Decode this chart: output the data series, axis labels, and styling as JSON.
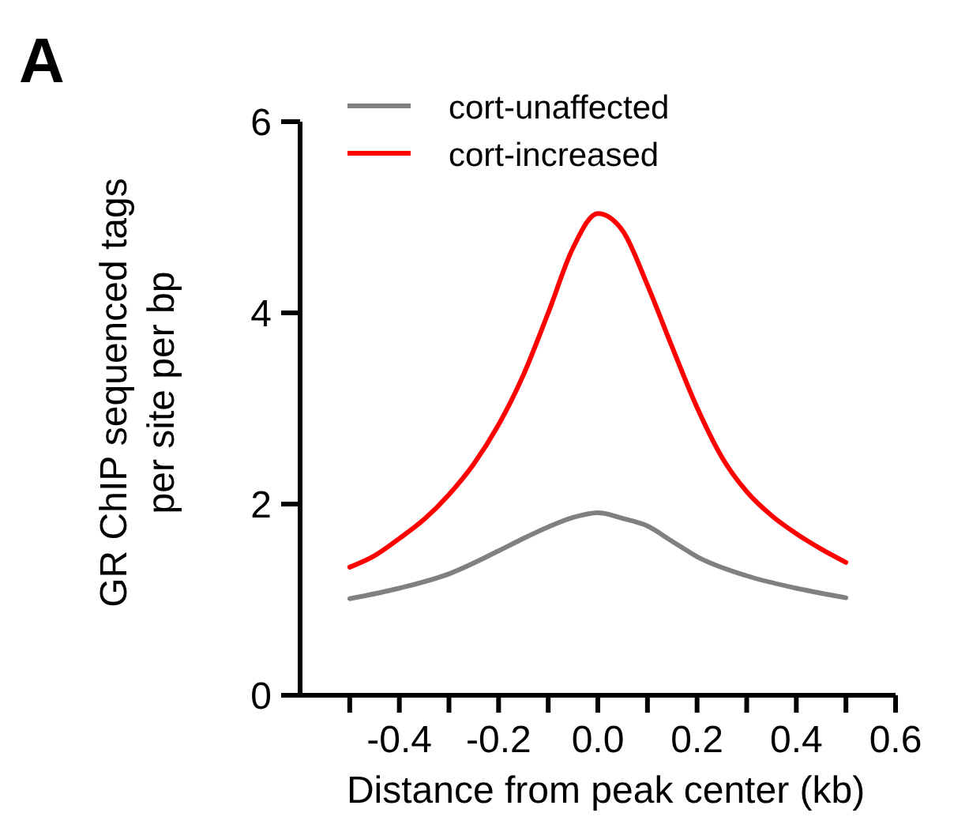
{
  "chart_data": {
    "type": "line",
    "xlabel": "Distance from peak center (kb)",
    "ylabel": "GR ChIP sequenced tags per site per bp",
    "annotations": [
      "A"
    ],
    "xlim": [
      -0.6,
      0.6
    ],
    "xticks": [
      {
        "value": -0.5,
        "label": null
      },
      -0.4,
      {
        "value": -0.3,
        "label": null
      },
      -0.2,
      {
        "value": -0.1,
        "label": null
      },
      {
        "value": 0,
        "label": "0.0"
      },
      {
        "value": 0.1,
        "label": null
      },
      0.2,
      {
        "value": 0.3,
        "label": null
      },
      0.4,
      {
        "value": 0.5,
        "label": null
      },
      0.6
    ],
    "ylim": [
      0,
      6
    ],
    "yticks": [
      0,
      2,
      4,
      6
    ],
    "legend": "top left",
    "grid": false,
    "marker": "none",
    "line_style": "solid",
    "series": [
      {
        "name": "cort-unaffected",
        "color": "#808080",
        "x": [
          -0.5,
          -0.4,
          -0.3,
          -0.2,
          -0.15,
          -0.1,
          -0.05,
          0,
          0.05,
          0.1,
          0.15,
          0.2,
          0.3,
          0.4,
          0.5
        ],
        "values": [
          1.01,
          1.12,
          1.27,
          1.51,
          1.64,
          1.76,
          1.86,
          1.91,
          1.85,
          1.77,
          1.61,
          1.45,
          1.25,
          1.12,
          1.02
        ]
      },
      {
        "name": "cort-increased",
        "color": "#ff0000",
        "x": [
          -0.5,
          -0.45,
          -0.4,
          -0.35,
          -0.3,
          -0.25,
          -0.2,
          -0.15,
          -0.1,
          -0.05,
          0,
          0.05,
          0.1,
          0.15,
          0.2,
          0.25,
          0.3,
          0.35,
          0.4,
          0.45,
          0.5
        ],
        "values": [
          1.34,
          1.46,
          1.64,
          1.84,
          2.1,
          2.42,
          2.83,
          3.35,
          4.0,
          4.68,
          5.04,
          4.86,
          4.29,
          3.64,
          3.01,
          2.49,
          2.13,
          1.88,
          1.69,
          1.53,
          1.39
        ]
      }
    ]
  }
}
